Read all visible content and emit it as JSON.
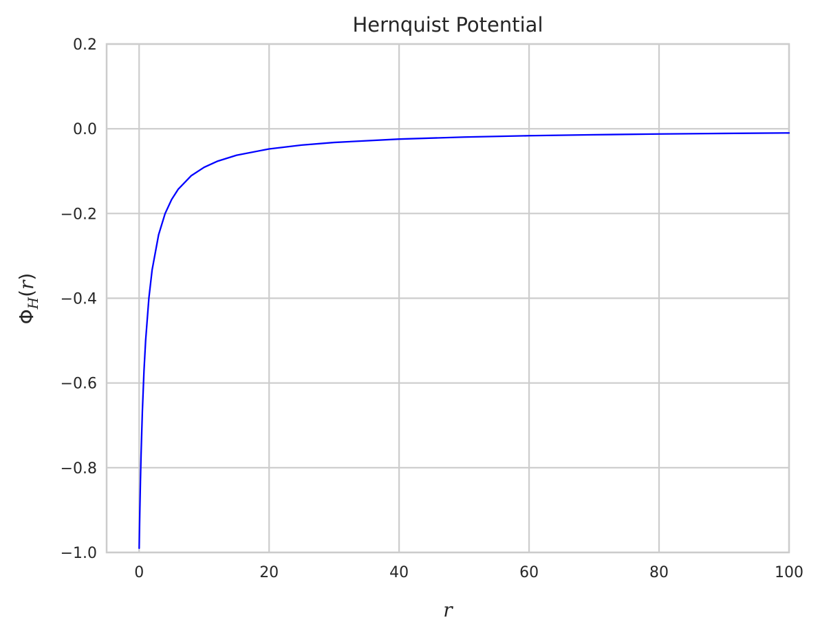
{
  "chart_data": {
    "type": "line",
    "title": "Hernquist Potential",
    "xlabel": "r",
    "ylabel": {
      "symbol": "Φ",
      "subscript": "H",
      "open": "(",
      "var": "r",
      "close": ")"
    },
    "xlim": [
      -5,
      100
    ],
    "ylim": [
      -1.0,
      0.2
    ],
    "xticks": [
      0,
      20,
      40,
      60,
      80,
      100
    ],
    "xtick_labels": [
      "0",
      "20",
      "40",
      "60",
      "80",
      "100"
    ],
    "yticks": [
      0.2,
      0.0,
      -0.2,
      -0.4,
      -0.6,
      -0.8,
      -1.0
    ],
    "ytick_labels": [
      "0.2",
      "0.0",
      "−0.2",
      "−0.4",
      "−0.6",
      "−0.8",
      "−1.0"
    ],
    "grid": true,
    "colors": {
      "line": "#0000ff",
      "grid": "#cccccc",
      "spine": "#cccccc",
      "text": "#262626"
    },
    "series": [
      {
        "x": [
          0.01,
          0.05,
          0.1,
          0.2,
          0.3,
          0.5,
          0.75,
          1,
          1.5,
          2,
          3,
          4,
          5,
          6,
          8,
          10,
          12,
          15,
          20,
          25,
          30,
          40,
          50,
          60,
          70,
          80,
          90,
          100
        ],
        "y": [
          -0.99,
          -0.952,
          -0.909,
          -0.833,
          -0.769,
          -0.667,
          -0.571,
          -0.5,
          -0.4,
          -0.333,
          -0.25,
          -0.2,
          -0.167,
          -0.143,
          -0.111,
          -0.0909,
          -0.0769,
          -0.0625,
          -0.0476,
          -0.0385,
          -0.0323,
          -0.0244,
          -0.0196,
          -0.0164,
          -0.0141,
          -0.0123,
          -0.011,
          -0.0099
        ]
      }
    ]
  }
}
